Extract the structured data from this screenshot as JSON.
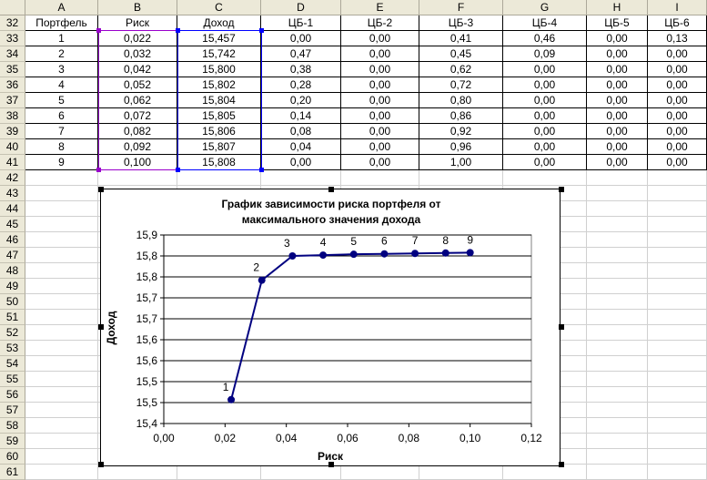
{
  "columns": [
    "A",
    "B",
    "C",
    "D",
    "E",
    "F",
    "G",
    "H",
    "I"
  ],
  "rows_start": 32,
  "rows_end": 61,
  "table": {
    "headers": [
      "Портфель",
      "Риск",
      "Доход",
      "ЦБ-1",
      "ЦБ-2",
      "ЦБ-3",
      "ЦБ-4",
      "ЦБ-5",
      "ЦБ-6"
    ],
    "rows": [
      [
        "1",
        "0,022",
        "15,457",
        "0,00",
        "0,00",
        "0,41",
        "0,46",
        "0,00",
        "0,13"
      ],
      [
        "2",
        "0,032",
        "15,742",
        "0,47",
        "0,00",
        "0,45",
        "0,09",
        "0,00",
        "0,00"
      ],
      [
        "3",
        "0,042",
        "15,800",
        "0,38",
        "0,00",
        "0,62",
        "0,00",
        "0,00",
        "0,00"
      ],
      [
        "4",
        "0,052",
        "15,802",
        "0,28",
        "0,00",
        "0,72",
        "0,00",
        "0,00",
        "0,00"
      ],
      [
        "5",
        "0,062",
        "15,804",
        "0,20",
        "0,00",
        "0,80",
        "0,00",
        "0,00",
        "0,00"
      ],
      [
        "6",
        "0,072",
        "15,805",
        "0,14",
        "0,00",
        "0,86",
        "0,00",
        "0,00",
        "0,00"
      ],
      [
        "7",
        "0,082",
        "15,806",
        "0,08",
        "0,00",
        "0,92",
        "0,00",
        "0,00",
        "0,00"
      ],
      [
        "8",
        "0,092",
        "15,807",
        "0,04",
        "0,00",
        "0,96",
        "0,00",
        "0,00",
        "0,00"
      ],
      [
        "9",
        "0,100",
        "15,808",
        "0,00",
        "0,00",
        "1,00",
        "0,00",
        "0,00",
        "0,00"
      ]
    ]
  },
  "colors": {
    "series": "#000080",
    "sel_x": "#9900cc",
    "sel_y": "#0000ff"
  },
  "chart_data": {
    "type": "line",
    "title_line1": "График зависимости риска портфеля от",
    "title_line2": "максимального значения дохода",
    "xlabel": "Риск",
    "ylabel": "Доход",
    "xlim": [
      0,
      0.12
    ],
    "ylim": [
      15.4,
      15.85
    ],
    "x_ticks": [
      0,
      0.02,
      0.04,
      0.06,
      0.08,
      0.1,
      0.12
    ],
    "x_tick_labels": [
      "0,00",
      "0,02",
      "0,04",
      "0,06",
      "0,08",
      "0,10",
      "0,12"
    ],
    "y_ticks": [
      15.4,
      15.45,
      15.5,
      15.55,
      15.6,
      15.65,
      15.7,
      15.75,
      15.8,
      15.85
    ],
    "y_tick_labels": [
      "15,4",
      "15,5",
      "15,5",
      "15,6",
      "15,6",
      "15,7",
      "15,7",
      "15,8",
      "15,8",
      "15,9"
    ],
    "grid": true,
    "x": [
      0.022,
      0.032,
      0.042,
      0.052,
      0.062,
      0.072,
      0.082,
      0.092,
      0.1
    ],
    "y": [
      15.457,
      15.742,
      15.8,
      15.802,
      15.804,
      15.805,
      15.806,
      15.807,
      15.808
    ],
    "point_labels": [
      "1",
      "2",
      "3",
      "4",
      "5",
      "6",
      "7",
      "8",
      "9"
    ]
  }
}
